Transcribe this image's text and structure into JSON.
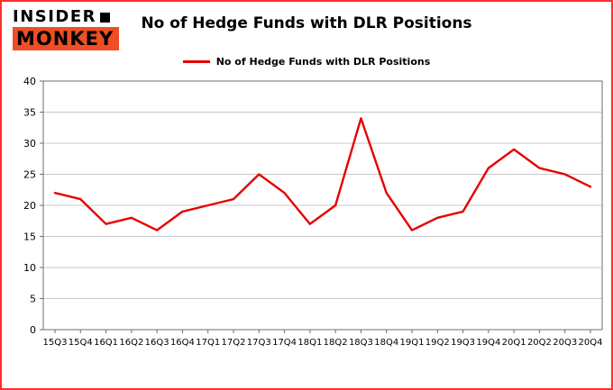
{
  "logo": {
    "line1": "INSIDER",
    "line2": "MONKEY"
  },
  "colors": {
    "page_border": "#ff2d2d",
    "logo_bg": "#f04e23",
    "grid": "#c8c8c8",
    "spine": "#6e6e6e",
    "text": "#000000"
  },
  "chart_data": {
    "type": "line",
    "title": "No of Hedge Funds with DLR Positions",
    "legend": "No of Hedge Funds with DLR Positions",
    "legend_position": "top",
    "grid": true,
    "line_color": "#e60100",
    "categories": [
      "15Q3",
      "15Q4",
      "16Q1",
      "16Q2",
      "16Q3",
      "16Q4",
      "17Q1",
      "17Q2",
      "17Q3",
      "17Q4",
      "18Q1",
      "18Q2",
      "18Q3",
      "18Q4",
      "19Q1",
      "19Q2",
      "19Q3",
      "19Q4",
      "20Q1",
      "20Q2",
      "20Q3",
      "20Q4"
    ],
    "values": [
      22,
      21,
      17,
      18,
      16,
      19,
      20,
      21,
      25,
      22,
      17,
      20,
      34,
      22,
      16,
      18,
      19,
      26,
      29,
      26,
      25,
      23
    ],
    "xlabel": "",
    "ylabel": "",
    "ylim": [
      0,
      40
    ],
    "yticks": [
      0,
      5,
      10,
      15,
      20,
      25,
      30,
      35,
      40
    ]
  }
}
